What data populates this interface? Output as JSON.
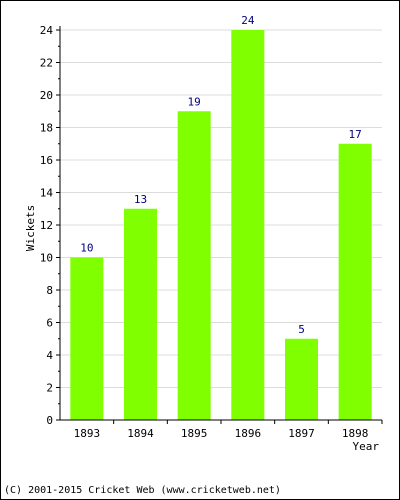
{
  "chart_data": {
    "type": "bar",
    "title": "",
    "xlabel": "Year",
    "ylabel": "Wickets",
    "categories": [
      "1893",
      "1894",
      "1895",
      "1896",
      "1897",
      "1898"
    ],
    "values": [
      10,
      13,
      19,
      24,
      5,
      17
    ],
    "ylim": [
      0,
      24
    ],
    "yticks": [
      0,
      2,
      4,
      6,
      8,
      10,
      12,
      14,
      16,
      18,
      20,
      22,
      24
    ],
    "grid": true,
    "legend": "none",
    "bar_color": "#80ff00",
    "data_label_color": "#000080",
    "grid_color": "#dcdcdc"
  },
  "footer": {
    "copyright": "(C) 2001-2015 Cricket Web (www.cricketweb.net)"
  }
}
